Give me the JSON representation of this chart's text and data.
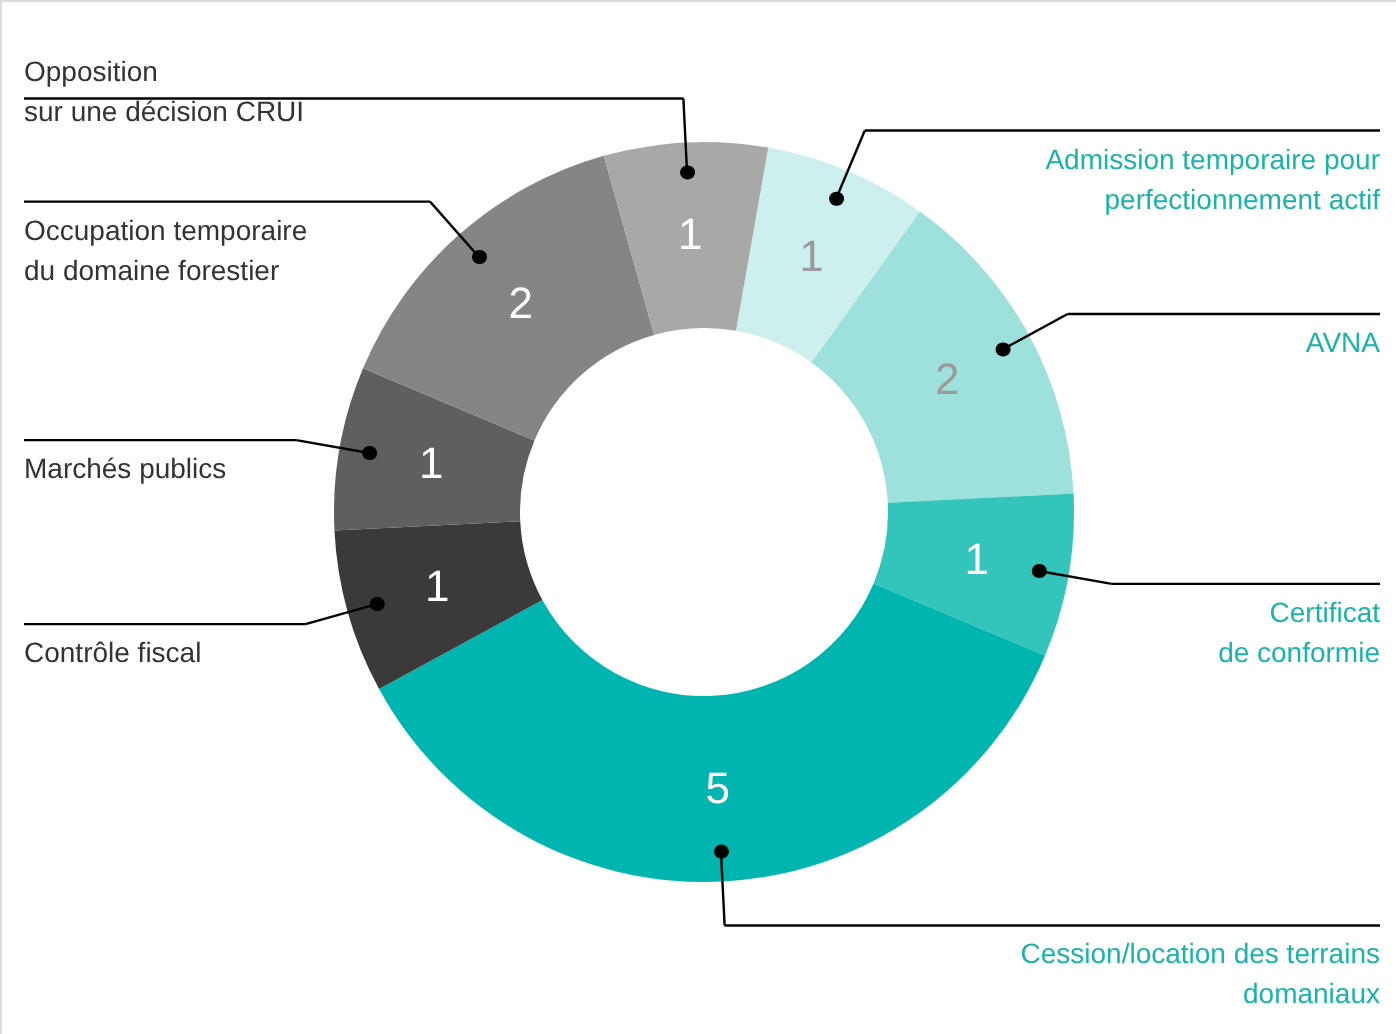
{
  "chart_data": {
    "type": "donut",
    "categories": [
      "Admission temporaire pour\nperfectionnement actif",
      "AVNA",
      "Certificat\nde conformie",
      "Cession/location des terrains\ndomaniaux",
      "Contrôle fiscal",
      "Marchés publics",
      "Occupation temporaire\ndu domaine forestier",
      "Opposition\nsur une décision CRUI"
    ],
    "values": [
      1,
      2,
      1,
      5,
      1,
      1,
      2,
      1
    ],
    "colors": [
      "#cdf0ee",
      "#9de0dc",
      "#33c4bc",
      "#00b5b0",
      "#3a3a3a",
      "#5f5f5f",
      "#858585",
      "#a8a8a8"
    ],
    "data_labels": true
  }
}
